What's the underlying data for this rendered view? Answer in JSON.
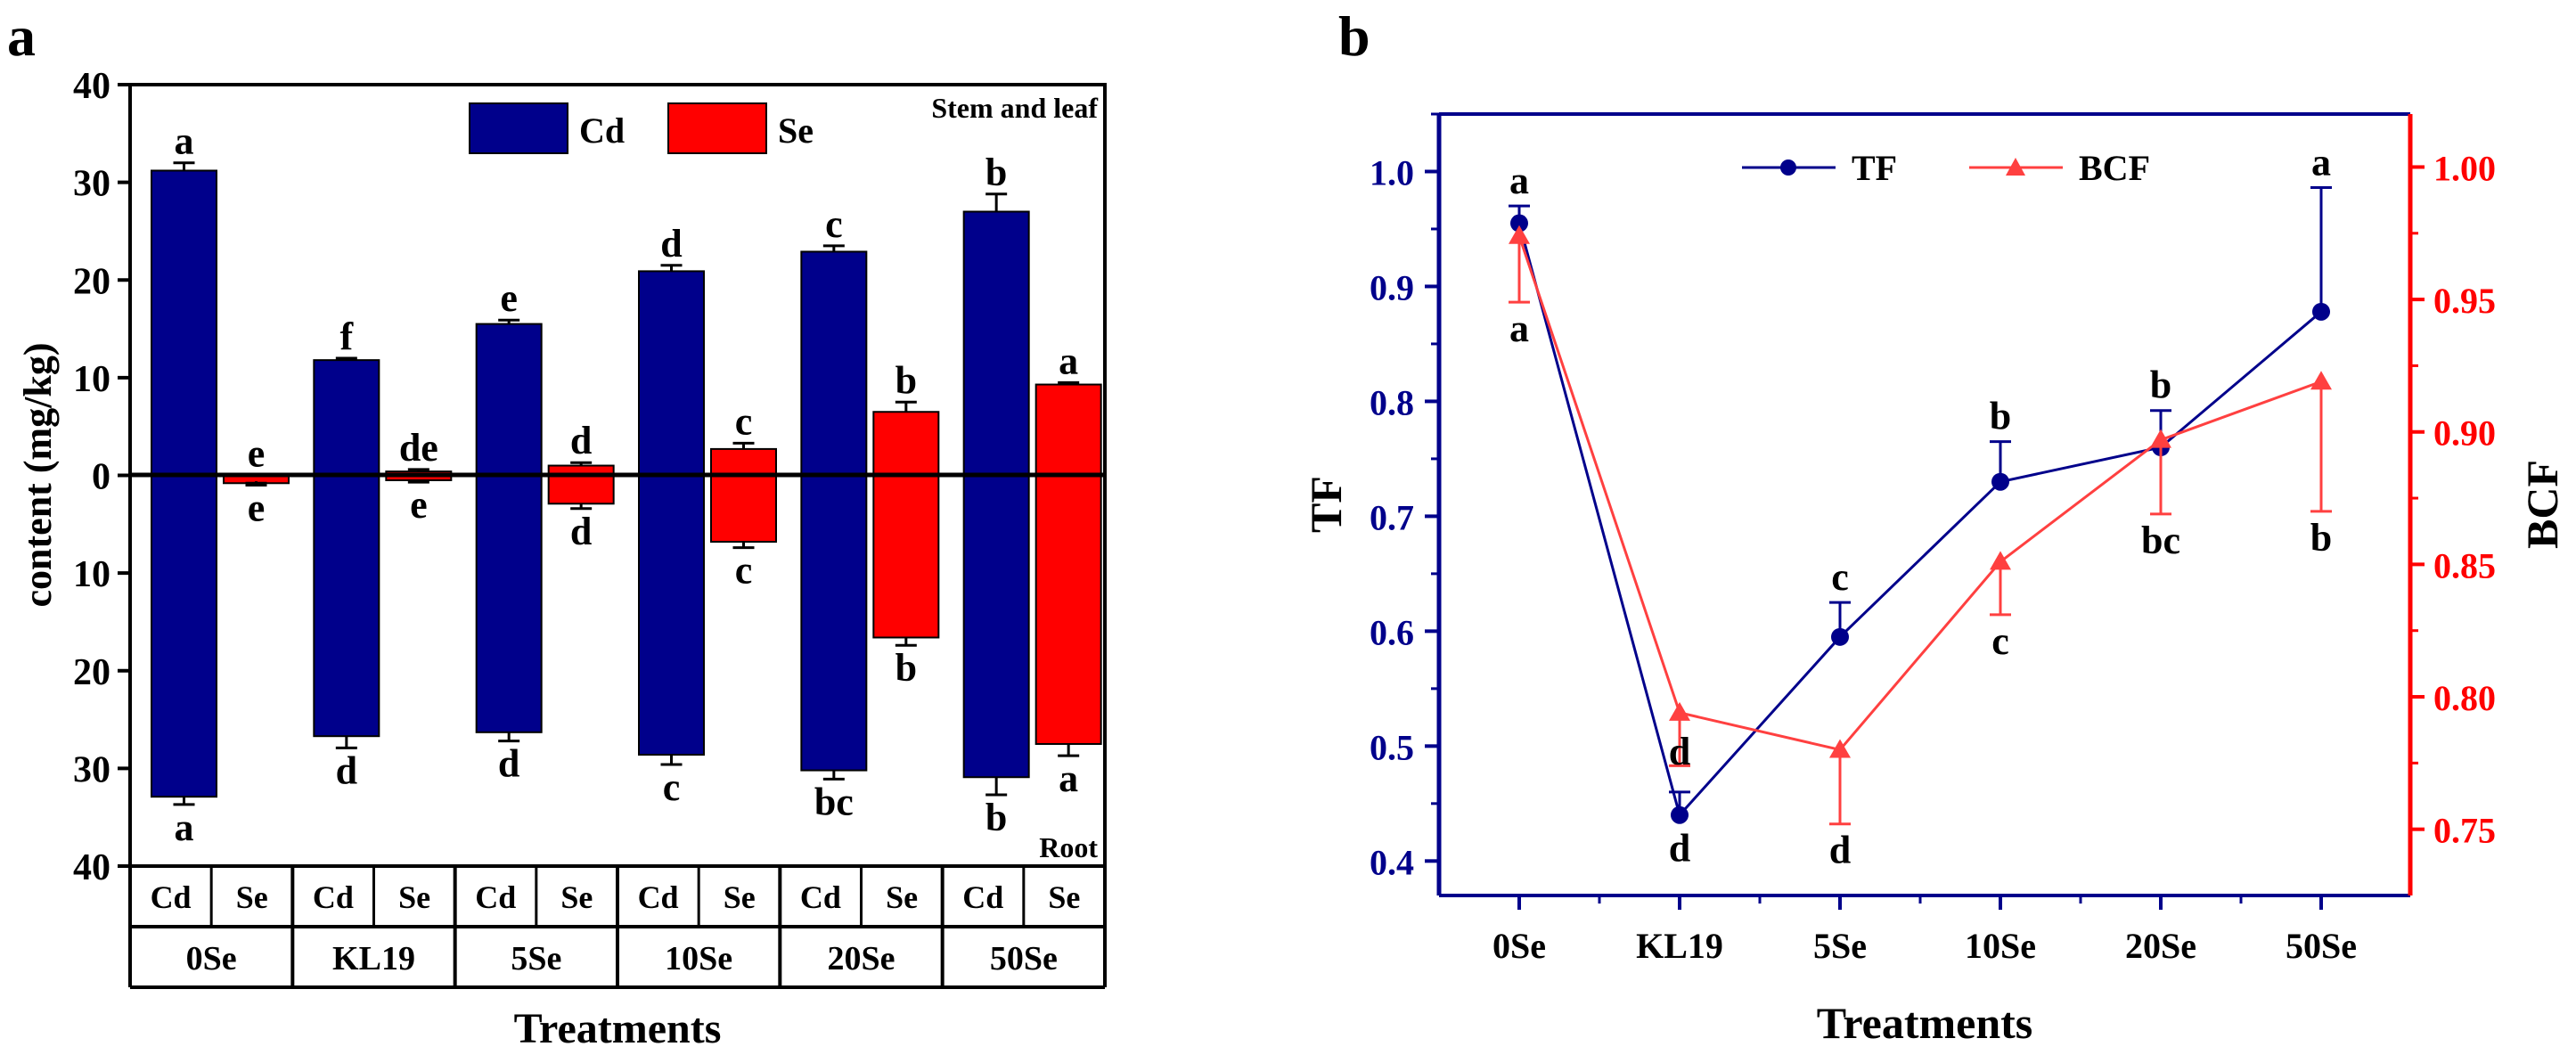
{
  "chart_data": [
    {
      "panel_label": "a",
      "type": "bar",
      "title": "",
      "ylabel": "content (mg/kg)",
      "xlabel": "Treatments",
      "ylim": [
        -40,
        40
      ],
      "yticks": [
        {
          "v": 40,
          "label": "40"
        },
        {
          "v": 30,
          "label": "30"
        },
        {
          "v": 20,
          "label": "20"
        },
        {
          "v": 10,
          "label": "10"
        },
        {
          "v": 0,
          "label": "0"
        },
        {
          "v": -10,
          "label": "10"
        },
        {
          "v": -20,
          "label": "20"
        },
        {
          "v": -30,
          "label": "30"
        },
        {
          "v": -40,
          "label": "40"
        }
      ],
      "categories": [
        "0Se",
        "KL19",
        "5Se",
        "10Se",
        "20Se",
        "50Se"
      ],
      "sub_categories": [
        "Cd",
        "Se"
      ],
      "legend": [
        {
          "name": "Cd",
          "color": "#00008b"
        },
        {
          "name": "Se",
          "color": "#ff0000"
        }
      ],
      "top_label": "Stem and leaf",
      "bottom_label": "Root",
      "series": [
        {
          "name": "Cd",
          "color": "#00008b",
          "stem_leaf": [
            31.2,
            11.8,
            15.5,
            20.9,
            22.9,
            27.0
          ],
          "stem_leaf_err": [
            0.8,
            0.2,
            0.4,
            0.6,
            0.6,
            1.8
          ],
          "stem_leaf_letters": [
            "a",
            "f",
            "e",
            "d",
            "c",
            "b"
          ],
          "root": [
            32.9,
            26.7,
            26.3,
            28.6,
            30.2,
            30.9
          ],
          "root_err": [
            0.8,
            1.2,
            0.9,
            1.0,
            0.9,
            1.8
          ],
          "root_letters": [
            "a",
            "d",
            "d",
            "c",
            "bc",
            "b"
          ]
        },
        {
          "name": "Se",
          "color": "#ff0000",
          "stem_leaf": [
            -0.6,
            0.4,
            1.0,
            2.7,
            6.5,
            9.3
          ],
          "stem_leaf_err": [
            0.2,
            0.2,
            0.3,
            0.6,
            1.0,
            0.2
          ],
          "stem_leaf_letters": [
            "e",
            "de",
            "d",
            "c",
            "b",
            "a"
          ],
          "root": [
            0.8,
            0.5,
            2.9,
            6.8,
            16.6,
            27.5
          ],
          "root_err": [
            0.2,
            0.2,
            0.5,
            0.6,
            0.8,
            1.2
          ],
          "root_letters": [
            "e",
            "e",
            "d",
            "c",
            "b",
            "a"
          ]
        }
      ]
    },
    {
      "panel_label": "b",
      "type": "line",
      "title": "",
      "xlabel": "Treatments",
      "categories": [
        "0Se",
        "KL19",
        "5Se",
        "10Se",
        "20Se",
        "50Se"
      ],
      "legend": [
        {
          "name": "TF",
          "color": "#00008b",
          "marker": "circle"
        },
        {
          "name": "BCF",
          "color": "#ff4040",
          "marker": "triangle"
        }
      ],
      "left_axis": {
        "label": "TF",
        "color": "#00008b",
        "ylim": [
          0.37,
          1.05
        ],
        "ticks": [
          {
            "v": 0.4,
            "label": "0.4"
          },
          {
            "v": 0.5,
            "label": "0.5"
          },
          {
            "v": 0.6,
            "label": "0.6"
          },
          {
            "v": 0.7,
            "label": "0.7"
          },
          {
            "v": 0.8,
            "label": "0.8"
          },
          {
            "v": 0.9,
            "label": "0.9"
          },
          {
            "v": 1.0,
            "label": "1.0"
          }
        ]
      },
      "right_axis": {
        "label": "BCF",
        "color": "#ff0000",
        "ylim": [
          0.725,
          1.02
        ],
        "ticks": [
          {
            "v": 0.75,
            "label": "0.75"
          },
          {
            "v": 0.8,
            "label": "0.80"
          },
          {
            "v": 0.85,
            "label": "0.85"
          },
          {
            "v": 0.9,
            "label": "0.90"
          },
          {
            "v": 0.95,
            "label": "0.95"
          },
          {
            "v": 1.0,
            "label": "1.00"
          }
        ]
      },
      "series": [
        {
          "name": "TF",
          "axis": "left",
          "color": "#00008b",
          "values": [
            0.955,
            0.44,
            0.595,
            0.73,
            0.76,
            0.878
          ],
          "err": [
            0.015,
            0.02,
            0.03,
            0.035,
            0.032,
            0.108
          ],
          "letters": [
            "a",
            "d",
            "c",
            "b",
            "b",
            "a"
          ]
        },
        {
          "name": "BCF",
          "axis": "right",
          "color": "#ff4040",
          "values": [
            0.974,
            0.794,
            0.78,
            0.851,
            0.897,
            0.919
          ],
          "err": [
            0.025,
            0.02,
            0.028,
            0.02,
            0.028,
            0.049
          ],
          "letters": [
            "a",
            "d",
            "d",
            "c",
            "bc",
            "b"
          ]
        }
      ]
    }
  ]
}
